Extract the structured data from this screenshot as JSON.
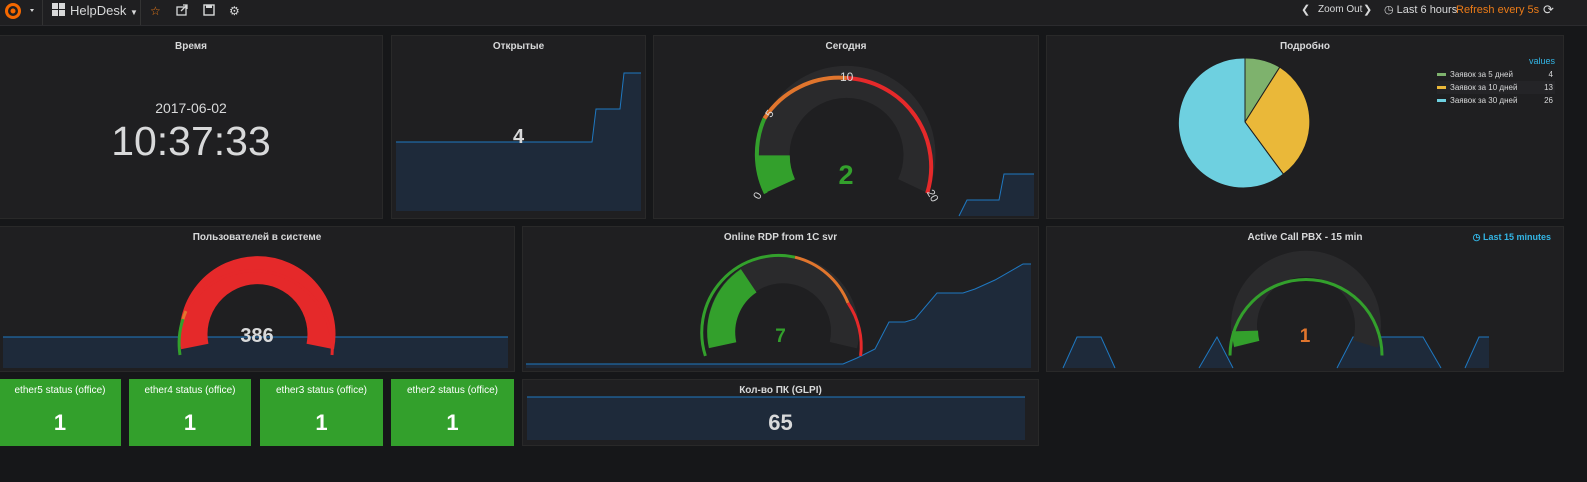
{
  "nav": {
    "dashboard_title": "HelpDesk",
    "zoom_out": "Zoom Out",
    "time_range": "Last 6 hours",
    "refresh": "Refresh every 5s"
  },
  "colors": {
    "green": "#33a02c",
    "orange": "#e0752d",
    "red": "#e5292a",
    "blue": "#1f78c1",
    "area_fill": "#1e2a3a",
    "pie_green": "#7eb26d",
    "pie_yellow": "#eab839",
    "pie_blue": "#6ed0e0"
  },
  "panels": {
    "time": {
      "title": "Время",
      "date": "2017-06-02",
      "clock": "10:37:33"
    },
    "open": {
      "title": "Открытые",
      "value": "4"
    },
    "today": {
      "title": "Сегодня",
      "value": "2",
      "ticks": [
        "0",
        "5",
        "10",
        "20"
      ],
      "level": 0.1
    },
    "detail": {
      "title": "Подробно",
      "legend_header": "values",
      "legend": [
        {
          "label": "Заявок за 5 дней",
          "value": "4",
          "color": "#7eb26d"
        },
        {
          "label": "Заявок за 10 дней",
          "value": "13",
          "color": "#eab839"
        },
        {
          "label": "Заявок за 30 дней",
          "value": "26",
          "color": "#6ed0e0"
        }
      ]
    },
    "users": {
      "title": "Пользователей в системе",
      "value": "386"
    },
    "rdp": {
      "title": "Online RDP from 1C svr",
      "value": "7"
    },
    "pbx": {
      "title": "Active Call PBX - 15 min",
      "value": "1",
      "time_override": "Last 15 minutes"
    },
    "ether5": {
      "title": "ether5 status (office)",
      "value": "1"
    },
    "ether4": {
      "title": "ether4 status (office)",
      "value": "1"
    },
    "ether3": {
      "title": "ether3 status (office)",
      "value": "1"
    },
    "ether2": {
      "title": "ether2 status (office)",
      "value": "1"
    },
    "glpi": {
      "title": "Кол-во ПК (GLPI)",
      "value": "65"
    }
  }
}
